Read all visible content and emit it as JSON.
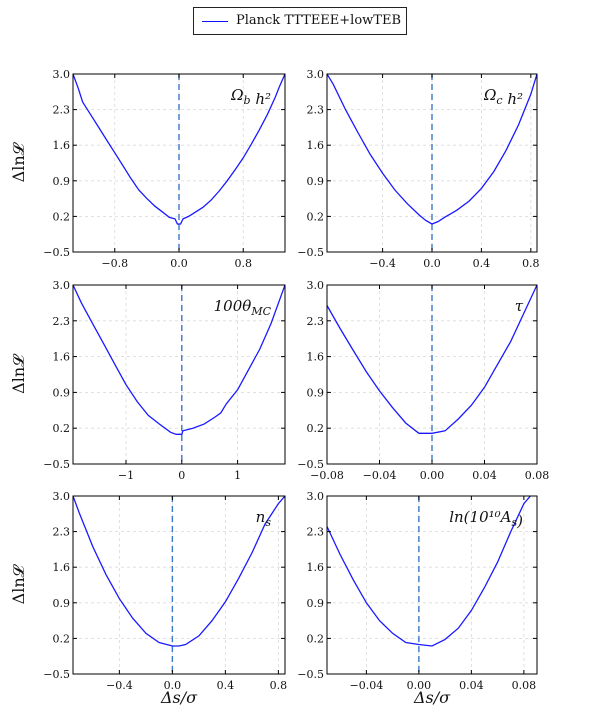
{
  "legend": {
    "label": "Planck TTTEEE+lowTEB"
  },
  "y_axis_label": "Δln𝓛",
  "x_axis_label": "Δs/σ",
  "colors": {
    "curve": "#1a1aff",
    "zero_line": "#3b78c6",
    "grid": "#d9d9d9",
    "frame": "#000000"
  },
  "chart_data": [
    {
      "type": "line",
      "title": "Ω_b h²",
      "xlim": [
        -1.32,
        1.32
      ],
      "ylim": [
        -0.5,
        3.0
      ],
      "xticks": [
        -0.8,
        0.0,
        0.8
      ],
      "xtick_labels": [
        "−0.8",
        "0.0",
        "0.8"
      ],
      "yticks": [
        -0.5,
        0.2,
        0.9,
        1.6,
        2.3,
        3.0
      ],
      "ytick_labels": [
        "−0.5",
        "0.2",
        "0.9",
        "1.6",
        "2.3",
        "3.0"
      ],
      "grid": true,
      "vline_x": 0,
      "series": [
        {
          "x": [
            -1.32,
            -1.25,
            -1.2,
            -1.1,
            -1.0,
            -0.9,
            -0.8,
            -0.7,
            -0.6,
            -0.5,
            -0.4,
            -0.3,
            -0.2,
            -0.12,
            -0.05,
            -0.02,
            0.02,
            0.05,
            0.12,
            0.2,
            0.3,
            0.4,
            0.5,
            0.6,
            0.7,
            0.8,
            0.9,
            1.0,
            1.1,
            1.2,
            1.25,
            1.32
          ],
          "y": [
            3.0,
            2.7,
            2.45,
            2.2,
            1.95,
            1.7,
            1.45,
            1.2,
            0.95,
            0.72,
            0.55,
            0.4,
            0.28,
            0.18,
            0.15,
            0.05,
            0.05,
            0.15,
            0.2,
            0.28,
            0.38,
            0.52,
            0.7,
            0.9,
            1.12,
            1.35,
            1.62,
            1.9,
            2.2,
            2.55,
            2.75,
            3.0
          ]
        }
      ]
    },
    {
      "type": "line",
      "title": "Ω_c h²",
      "xlim": [
        -0.85,
        0.85
      ],
      "ylim": [
        -0.5,
        3.0
      ],
      "xticks": [
        -0.4,
        0.0,
        0.4,
        0.8
      ],
      "xtick_labels": [
        "−0.4",
        "0.0",
        "0.4",
        "0.8"
      ],
      "yticks": [
        -0.5,
        0.2,
        0.9,
        1.6,
        2.3,
        3.0
      ],
      "ytick_labels": [
        "−0.5",
        "0.2",
        "0.9",
        "1.6",
        "2.3",
        "3.0"
      ],
      "grid": true,
      "vline_x": 0,
      "series": [
        {
          "x": [
            -0.85,
            -0.8,
            -0.7,
            -0.6,
            -0.5,
            -0.4,
            -0.3,
            -0.2,
            -0.1,
            -0.05,
            0.0,
            0.05,
            0.1,
            0.2,
            0.3,
            0.4,
            0.5,
            0.6,
            0.7,
            0.8,
            0.85
          ],
          "y": [
            3.0,
            2.8,
            2.3,
            1.85,
            1.42,
            1.05,
            0.72,
            0.45,
            0.22,
            0.12,
            0.05,
            0.1,
            0.18,
            0.32,
            0.5,
            0.75,
            1.08,
            1.5,
            2.0,
            2.6,
            3.0
          ]
        }
      ]
    },
    {
      "type": "line",
      "title": "100θ_MC",
      "xlim": [
        -1.95,
        1.85
      ],
      "ylim": [
        -0.5,
        3.0
      ],
      "xticks": [
        -1,
        0,
        1
      ],
      "xtick_labels": [
        "−1",
        "0",
        "1"
      ],
      "yticks": [
        -0.5,
        0.2,
        0.9,
        1.6,
        2.3,
        3.0
      ],
      "ytick_labels": [
        "−0.5",
        "0.2",
        "0.9",
        "1.6",
        "2.3",
        "3.0"
      ],
      "grid": true,
      "vline_x": 0,
      "series": [
        {
          "x": [
            -1.95,
            -1.8,
            -1.6,
            -1.4,
            -1.2,
            -1.0,
            -0.8,
            -0.6,
            -0.4,
            -0.2,
            -0.1,
            0.0,
            0.02,
            0.2,
            0.4,
            0.6,
            0.7,
            0.8,
            1.0,
            1.2,
            1.4,
            1.6,
            1.8,
            1.85
          ],
          "y": [
            3.0,
            2.65,
            2.25,
            1.85,
            1.45,
            1.05,
            0.72,
            0.45,
            0.28,
            0.12,
            0.08,
            0.08,
            0.15,
            0.2,
            0.28,
            0.42,
            0.5,
            0.68,
            0.95,
            1.35,
            1.75,
            2.25,
            2.85,
            3.0
          ]
        }
      ]
    },
    {
      "type": "line",
      "title": "τ",
      "xlim": [
        -0.08,
        0.08
      ],
      "ylim": [
        -0.5,
        3.0
      ],
      "xticks": [
        -0.08,
        -0.04,
        0.0,
        0.04,
        0.08
      ],
      "xtick_labels": [
        "−0.08",
        "−0.04",
        "0.00",
        "0.04",
        "0.08"
      ],
      "yticks": [
        -0.5,
        0.2,
        0.9,
        1.6,
        2.3,
        3.0
      ],
      "ytick_labels": [
        "−0.5",
        "0.2",
        "0.9",
        "1.6",
        "2.3",
        "3.0"
      ],
      "grid": true,
      "vline_x": 0,
      "series": [
        {
          "x": [
            -0.08,
            -0.07,
            -0.06,
            -0.05,
            -0.04,
            -0.03,
            -0.02,
            -0.01,
            0.0,
            0.01,
            0.02,
            0.03,
            0.04,
            0.05,
            0.06,
            0.07,
            0.08
          ],
          "y": [
            2.6,
            2.15,
            1.72,
            1.3,
            0.93,
            0.6,
            0.3,
            0.1,
            0.1,
            0.15,
            0.38,
            0.65,
            1.0,
            1.45,
            1.9,
            2.45,
            3.0
          ]
        }
      ]
    },
    {
      "type": "line",
      "title": "n_s",
      "xlim": [
        -0.75,
        0.85
      ],
      "ylim": [
        -0.5,
        3.0
      ],
      "xticks": [
        -0.4,
        0.0,
        0.4,
        0.8
      ],
      "xtick_labels": [
        "−0.4",
        "0.0",
        "0.4",
        "0.8"
      ],
      "yticks": [
        -0.5,
        0.2,
        0.9,
        1.6,
        2.3,
        3.0
      ],
      "ytick_labels": [
        "−0.5",
        "0.2",
        "0.9",
        "1.6",
        "2.3",
        "3.0"
      ],
      "grid": true,
      "vline_x": 0,
      "series": [
        {
          "x": [
            -0.75,
            -0.7,
            -0.6,
            -0.5,
            -0.4,
            -0.3,
            -0.2,
            -0.1,
            0.0,
            0.05,
            0.1,
            0.2,
            0.3,
            0.4,
            0.5,
            0.6,
            0.7,
            0.8,
            0.85
          ],
          "y": [
            3.0,
            2.65,
            2.0,
            1.45,
            0.98,
            0.6,
            0.3,
            0.12,
            0.05,
            0.05,
            0.08,
            0.25,
            0.55,
            0.92,
            1.38,
            1.88,
            2.45,
            2.85,
            3.0
          ]
        }
      ]
    },
    {
      "type": "line",
      "title": "ln(10¹⁰A_s)",
      "xlim": [
        -0.07,
        0.09
      ],
      "ylim": [
        -0.5,
        3.0
      ],
      "xticks": [
        -0.04,
        0.0,
        0.04,
        0.08
      ],
      "xtick_labels": [
        "−0.04",
        "0.00",
        "0.04",
        "0.08"
      ],
      "yticks": [
        -0.5,
        0.2,
        0.9,
        1.6,
        2.3,
        3.0
      ],
      "ytick_labels": [
        "−0.5",
        "0.2",
        "0.9",
        "1.6",
        "2.3",
        "3.0"
      ],
      "grid": true,
      "vline_x": 0,
      "series": [
        {
          "x": [
            -0.07,
            -0.06,
            -0.05,
            -0.04,
            -0.03,
            -0.02,
            -0.01,
            0.0,
            0.01,
            0.02,
            0.03,
            0.04,
            0.05,
            0.06,
            0.07,
            0.08,
            0.085
          ],
          "y": [
            2.4,
            1.85,
            1.35,
            0.9,
            0.55,
            0.3,
            0.12,
            0.08,
            0.05,
            0.18,
            0.4,
            0.75,
            1.2,
            1.7,
            2.3,
            2.85,
            3.0
          ]
        }
      ]
    }
  ]
}
